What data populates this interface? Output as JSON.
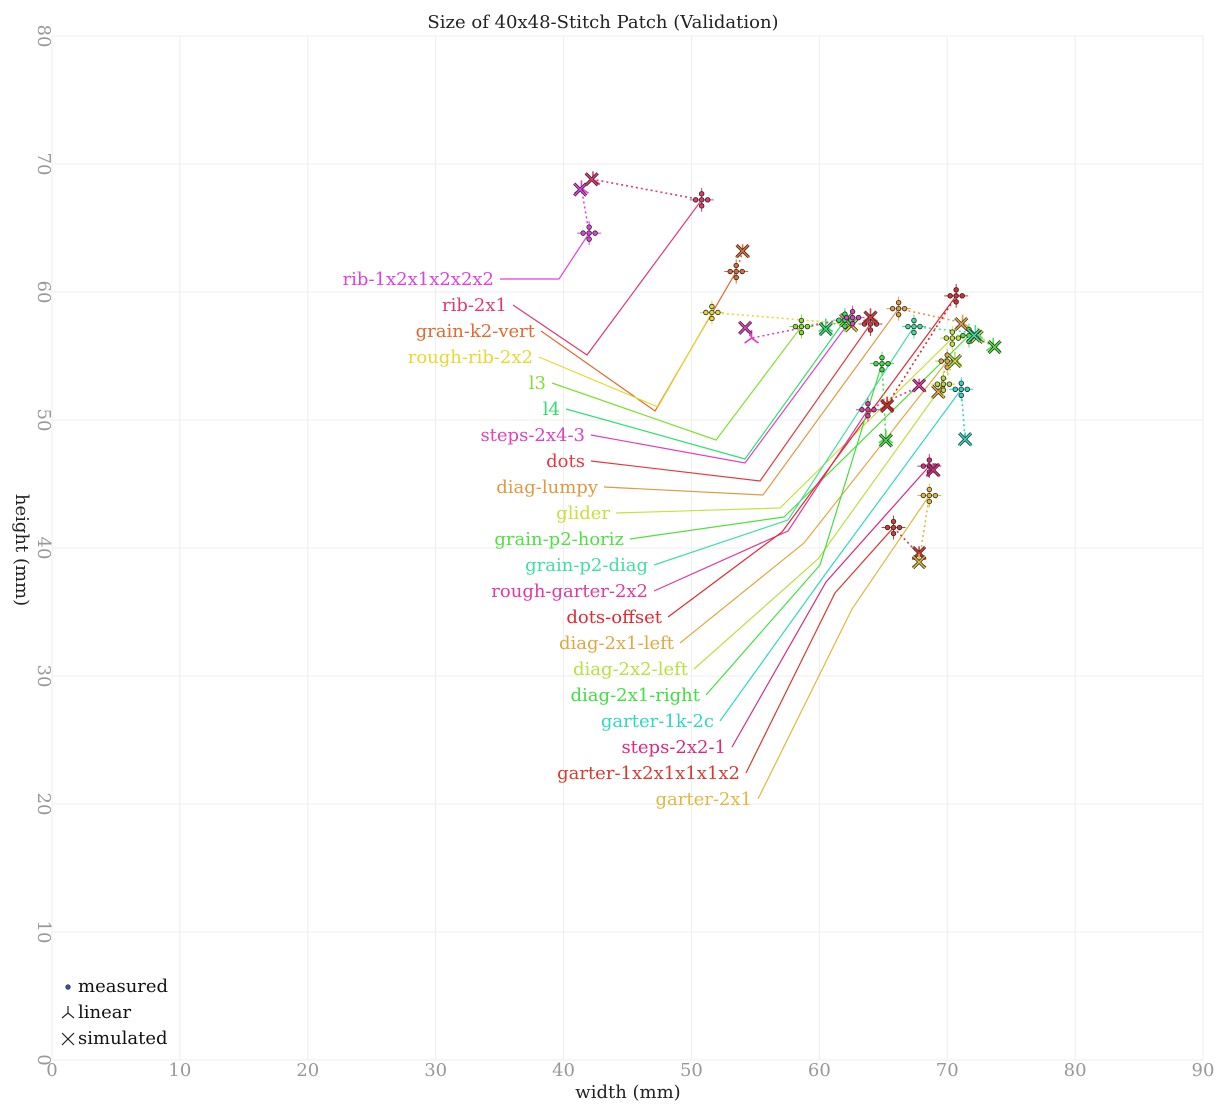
{
  "chart_data": {
    "type": "scatter",
    "title": "Size of 40x48-Stitch Patch (Validation)",
    "xlabel": "width (mm)",
    "ylabel": "height (mm)",
    "xlim": [
      0,
      90
    ],
    "ylim": [
      0,
      80
    ],
    "xticks": [
      0,
      10,
      20,
      30,
      40,
      50,
      60,
      70,
      80,
      90
    ],
    "yticks": [
      0,
      10,
      20,
      30,
      40,
      50,
      60,
      70,
      80
    ],
    "grid": true,
    "legend": {
      "position": "bottom-left",
      "entries": [
        {
          "marker": "dot",
          "label": "measured"
        },
        {
          "marker": "tri",
          "label": "linear"
        },
        {
          "marker": "x",
          "label": "simulated"
        }
      ]
    },
    "series": [
      {
        "name": "rib-1x2x1x2x2x2",
        "color": "#e040e0",
        "measured": [
          42.0,
          64.6
        ],
        "linear": [
          41.4,
          68.1
        ],
        "simulated": [
          41.3,
          68.0
        ]
      },
      {
        "name": "rib-2x1",
        "color": "#e03a6e",
        "measured": [
          50.8,
          67.2
        ],
        "linear": [
          42.3,
          68.8
        ],
        "simulated": [
          42.2,
          68.8
        ]
      },
      {
        "name": "grain-k2-vert",
        "color": "#e06a30",
        "measured": [
          53.5,
          61.6
        ],
        "linear": [
          54.0,
          63.1
        ],
        "simulated": [
          54.0,
          63.2
        ]
      },
      {
        "name": "rough-rib-2x2",
        "color": "#e8d830",
        "measured": [
          51.6,
          58.4
        ],
        "linear": [
          62.4,
          57.5
        ],
        "simulated": [
          62.5,
          57.4
        ]
      },
      {
        "name": "l3",
        "color": "#80e030",
        "measured": [
          58.6,
          57.3
        ],
        "linear": [
          62.0,
          57.9
        ],
        "simulated": [
          62.1,
          57.8
        ]
      },
      {
        "name": "l4",
        "color": "#30e070",
        "measured": [
          62.0,
          57.8
        ],
        "linear": [
          60.5,
          57.3
        ],
        "simulated": [
          60.5,
          57.1
        ]
      },
      {
        "name": "steps-2x4-3",
        "color": "#e040c0",
        "measured": [
          62.6,
          58.0
        ],
        "linear": [
          54.7,
          56.4
        ],
        "simulated": [
          54.2,
          57.2
        ]
      },
      {
        "name": "dots",
        "color": "#e03a40",
        "measured": [
          64.0,
          57.5
        ],
        "linear": [
          64.0,
          58.1
        ],
        "simulated": [
          64.0,
          58.0
        ]
      },
      {
        "name": "diag-lumpy",
        "color": "#e09a40",
        "measured": [
          66.2,
          58.7
        ],
        "linear": [
          71.2,
          57.6
        ],
        "simulated": [
          71.1,
          57.5
        ]
      },
      {
        "name": "glider",
        "color": "#c8e040",
        "measured": [
          70.4,
          56.4
        ],
        "linear": [
          72.4,
          56.6
        ],
        "simulated": [
          72.3,
          56.5
        ]
      },
      {
        "name": "grain-p2-horiz",
        "color": "#50e040",
        "measured": [
          71.7,
          56.6
        ],
        "linear": [
          73.6,
          55.8
        ],
        "simulated": [
          73.7,
          55.7
        ]
      },
      {
        "name": "grain-p2-diag",
        "color": "#40e0a0",
        "measured": [
          67.4,
          57.3
        ],
        "linear": [
          72.2,
          56.8
        ],
        "simulated": [
          72.1,
          56.6
        ]
      },
      {
        "name": "rough-garter-2x2",
        "color": "#e03aa0",
        "measured": [
          63.8,
          50.8
        ],
        "linear": [
          67.8,
          52.6
        ],
        "simulated": [
          67.8,
          52.7
        ]
      },
      {
        "name": "dots-offset",
        "color": "#e02a30",
        "measured": [
          70.7,
          59.7
        ],
        "linear": [
          65.3,
          51.2
        ],
        "simulated": [
          65.3,
          51.1
        ]
      },
      {
        "name": "diag-2x1-left",
        "color": "#e0a840",
        "measured": [
          70.0,
          54.6
        ],
        "linear": [
          69.3,
          52.1
        ],
        "simulated": [
          69.3,
          52.2
        ]
      },
      {
        "name": "diag-2x2-left",
        "color": "#b8e040",
        "measured": [
          69.7,
          52.8
        ],
        "linear": [
          70.6,
          54.7
        ],
        "simulated": [
          70.6,
          54.6
        ]
      },
      {
        "name": "diag-2x1-right",
        "color": "#40e040",
        "measured": [
          64.9,
          54.4
        ],
        "linear": [
          65.2,
          48.6
        ],
        "simulated": [
          65.2,
          48.4
        ]
      },
      {
        "name": "garter-1k-2c",
        "color": "#30d8c0",
        "measured": [
          71.1,
          52.4
        ],
        "linear": [
          71.4,
          48.4
        ],
        "simulated": [
          71.4,
          48.5
        ]
      },
      {
        "name": "steps-2x2-1",
        "color": "#d82a80",
        "measured": [
          68.6,
          46.4
        ],
        "linear": [
          68.9,
          46.0
        ],
        "simulated": [
          68.9,
          46.1
        ]
      },
      {
        "name": "garter-1x2x1x1x1x2",
        "color": "#d83a30",
        "measured": [
          65.8,
          41.6
        ],
        "linear": [
          67.8,
          39.5
        ],
        "simulated": [
          67.8,
          39.6
        ]
      },
      {
        "name": "garter-2x1",
        "color": "#e0b840",
        "measured": [
          68.6,
          44.1
        ],
        "linear": [
          67.8,
          38.9
        ],
        "simulated": [
          67.8,
          38.9
        ]
      }
    ]
  }
}
